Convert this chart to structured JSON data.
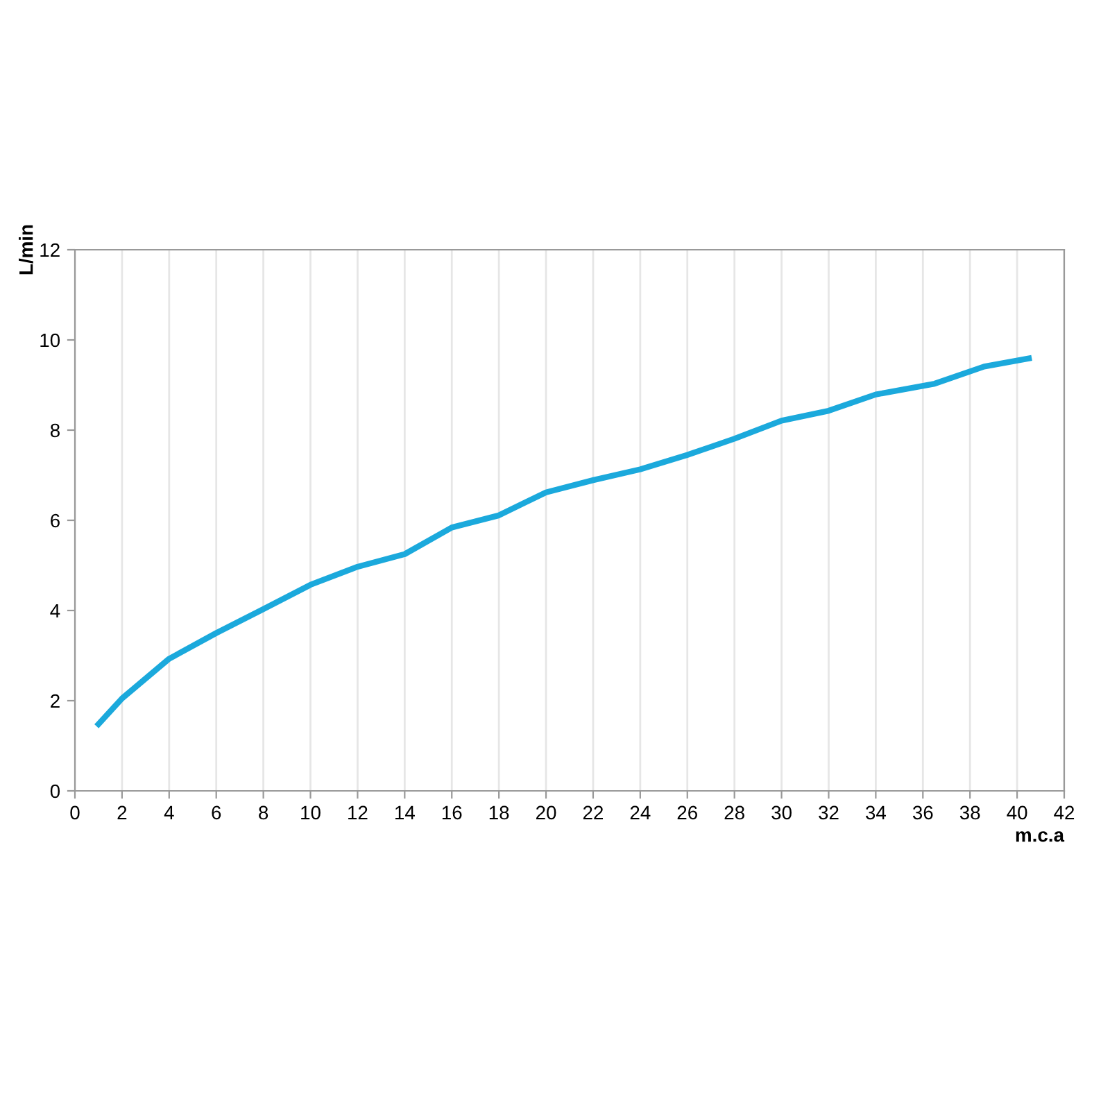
{
  "chart_data": {
    "type": "line",
    "xlabel": "m.c.a",
    "ylabel": "L/min",
    "x": [
      1,
      2,
      4,
      6,
      8,
      10,
      12,
      14,
      16,
      18,
      20,
      22,
      24,
      26,
      28,
      30,
      32,
      34,
      36.5,
      38.6,
      40.5
    ],
    "series": [
      {
        "color": "#1ba9dc",
        "values": [
          1.48,
          2.05,
          2.93,
          3.5,
          4.03,
          4.57,
          4.97,
          5.25,
          5.84,
          6.11,
          6.62,
          6.89,
          7.13,
          7.45,
          7.81,
          8.21,
          8.43,
          8.79,
          9.03,
          9.41,
          9.59
        ]
      }
    ],
    "xlim": [
      0,
      42
    ],
    "xticks": [
      0,
      2,
      4,
      6,
      8,
      10,
      12,
      14,
      16,
      18,
      20,
      22,
      24,
      26,
      28,
      30,
      32,
      34,
      36,
      38,
      40,
      42
    ],
    "ylim": [
      0,
      12
    ],
    "yticks": [
      0,
      2,
      4,
      6,
      8,
      10,
      12
    ],
    "grid": "x",
    "marker": "none",
    "line_style": "solid"
  }
}
